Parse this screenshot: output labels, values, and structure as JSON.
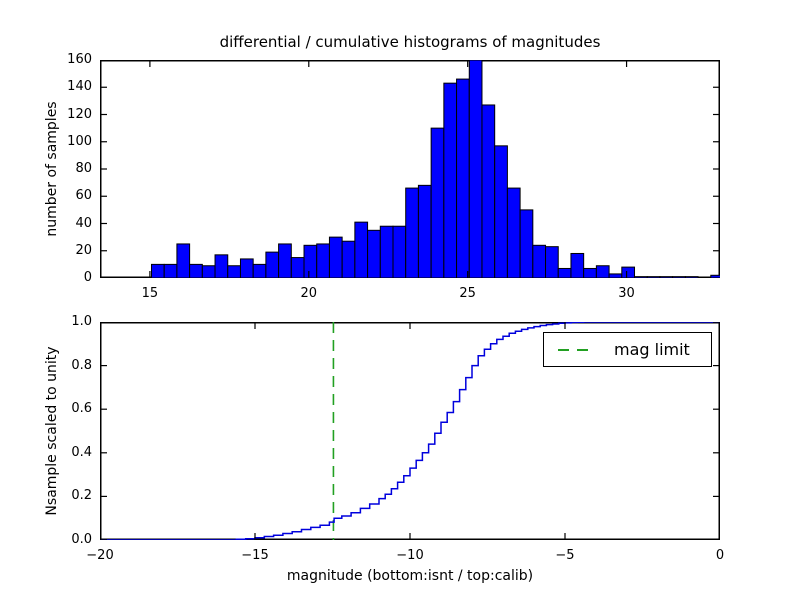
{
  "title": "differential / cumulative histograms of magnitudes",
  "colors": {
    "background": "#ffffff",
    "bar_fill": "#0000ff",
    "bar_edge": "#000000",
    "curve": "#0000dd",
    "mag_limit": "#22a022",
    "frame": "#000000",
    "text": "#000000"
  },
  "chart_data": [
    {
      "type": "bar",
      "role": "differential-histogram-calib-magnitudes",
      "ylabel": "number of samples",
      "xlim": [
        13.43,
        32.94
      ],
      "ylim": [
        0,
        160
      ],
      "grid": false,
      "xticks": {
        "values": [
          15,
          20,
          25,
          30
        ],
        "labels": [
          "15",
          "20",
          "25",
          "30"
        ]
      },
      "yticks": {
        "values": [
          0,
          20,
          40,
          60,
          80,
          100,
          120,
          140,
          160
        ],
        "labels": [
          "0",
          "20",
          "40",
          "60",
          "80",
          "100",
          "120",
          "140",
          "160"
        ]
      },
      "bins": {
        "start": 15.05,
        "width": 0.4
      },
      "values": [
        10,
        10,
        25,
        10,
        9,
        17,
        9,
        14,
        10,
        19,
        25,
        15,
        24,
        25,
        30,
        27,
        41,
        35,
        38,
        38,
        66,
        68,
        110,
        143,
        146,
        160,
        127,
        97,
        66,
        50,
        24,
        23,
        7,
        18,
        7,
        9,
        3,
        8,
        1,
        1,
        1,
        1,
        1,
        0,
        2
      ]
    },
    {
      "type": "line",
      "role": "cumulative-histogram-isnt-magnitudes",
      "line_style": "step",
      "ylabel": "Nsample scaled to unity",
      "xlabel": "magnitude (bottom:isnt / top:calib)",
      "xlim": [
        -20,
        0
      ],
      "ylim": [
        0.0,
        1.0
      ],
      "grid": false,
      "xticks": {
        "values": [
          -20,
          -15,
          -10,
          -5,
          0
        ],
        "labels": [
          "−20",
          "−15",
          "−10",
          "−5",
          "0"
        ]
      },
      "yticks": {
        "values": [
          0.0,
          0.2,
          0.4,
          0.6,
          0.8,
          1.0
        ],
        "labels": [
          "0.0",
          "0.2",
          "0.4",
          "0.6",
          "0.8",
          "1.0"
        ]
      },
      "legend": {
        "label": "mag limit",
        "position": "upper right",
        "line_style": "dashed-green"
      },
      "mag_limit_x": -12.47,
      "points": [
        [
          -20,
          0
        ],
        [
          -15.6,
          0.003
        ],
        [
          -15.3,
          0.006
        ],
        [
          -15,
          0.01
        ],
        [
          -14.7,
          0.016
        ],
        [
          -14.4,
          0.022
        ],
        [
          -14.1,
          0.03
        ],
        [
          -13.8,
          0.038
        ],
        [
          -13.5,
          0.048
        ],
        [
          -13.2,
          0.058
        ],
        [
          -12.9,
          0.068
        ],
        [
          -12.6,
          0.082
        ],
        [
          -12.45,
          0.1
        ],
        [
          -12.2,
          0.11
        ],
        [
          -11.9,
          0.125
        ],
        [
          -11.6,
          0.145
        ],
        [
          -11.3,
          0.165
        ],
        [
          -11,
          0.19
        ],
        [
          -10.8,
          0.21
        ],
        [
          -10.6,
          0.235
        ],
        [
          -10.4,
          0.265
        ],
        [
          -10.2,
          0.295
        ],
        [
          -10,
          0.33
        ],
        [
          -9.8,
          0.365
        ],
        [
          -9.6,
          0.4
        ],
        [
          -9.4,
          0.44
        ],
        [
          -9.2,
          0.49
        ],
        [
          -9,
          0.54
        ],
        [
          -8.8,
          0.585
        ],
        [
          -8.6,
          0.635
        ],
        [
          -8.4,
          0.69
        ],
        [
          -8.2,
          0.745
        ],
        [
          -8,
          0.8
        ],
        [
          -7.8,
          0.845
        ],
        [
          -7.6,
          0.875
        ],
        [
          -7.4,
          0.9
        ],
        [
          -7.2,
          0.92
        ],
        [
          -7,
          0.935
        ],
        [
          -6.8,
          0.948
        ],
        [
          -6.6,
          0.958
        ],
        [
          -6.4,
          0.966
        ],
        [
          -6.2,
          0.973
        ],
        [
          -6,
          0.979
        ],
        [
          -5.8,
          0.984
        ],
        [
          -5.6,
          0.988
        ],
        [
          -5.4,
          0.991
        ],
        [
          -5.2,
          0.994
        ],
        [
          -5,
          0.996
        ],
        [
          -4.8,
          0.998
        ],
        [
          -4.6,
          0.999
        ],
        [
          -4.4,
          1.0
        ],
        [
          0,
          1.0
        ]
      ]
    }
  ]
}
